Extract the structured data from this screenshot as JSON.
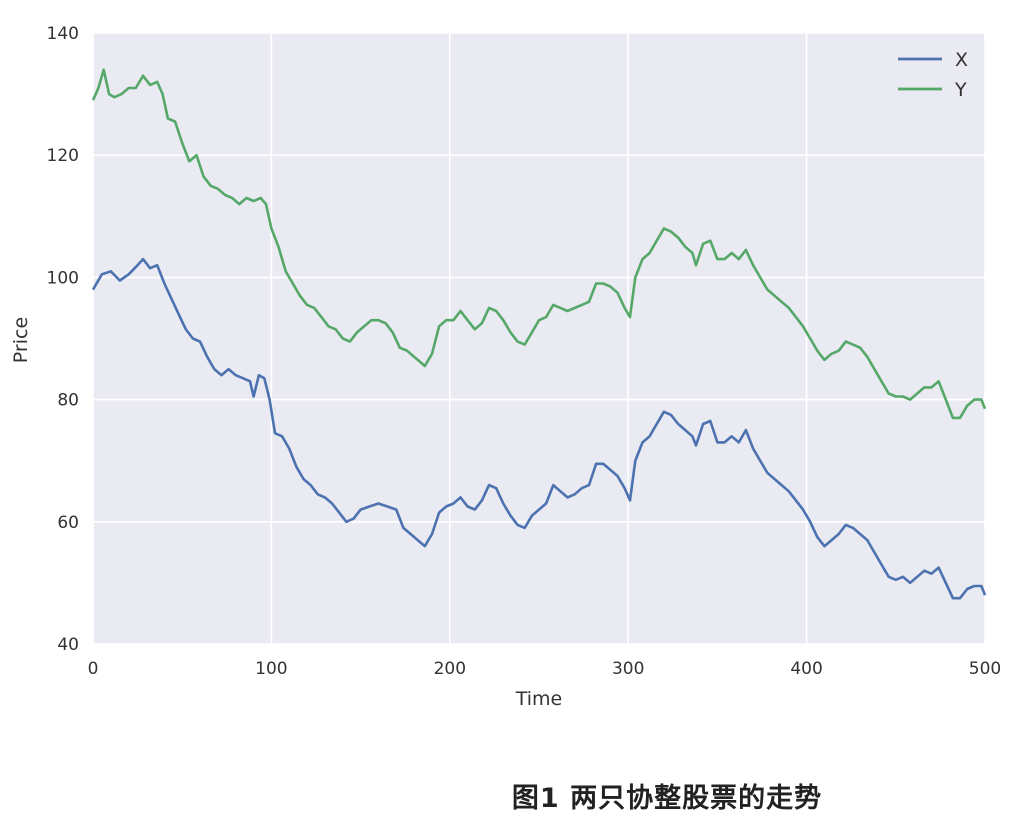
{
  "caption": "图1  两只协整股票的走势",
  "chart_data": {
    "type": "line",
    "title": "",
    "xlabel": "Time",
    "ylabel": "Price",
    "xlim": [
      0,
      500
    ],
    "ylim": [
      40,
      140
    ],
    "x_ticks": [
      "0",
      "100",
      "200",
      "300",
      "400",
      "500"
    ],
    "y_ticks": [
      "40",
      "60",
      "80",
      "100",
      "120",
      "140"
    ],
    "grid": true,
    "legend_position": "top-right",
    "series": [
      {
        "name": "X",
        "color": "#4c72b0",
        "points": [
          [
            0,
            98
          ],
          [
            5,
            100.5
          ],
          [
            10,
            101
          ],
          [
            15,
            99.5
          ],
          [
            20,
            100.5
          ],
          [
            25,
            102
          ],
          [
            28,
            103
          ],
          [
            32,
            101.5
          ],
          [
            36,
            102
          ],
          [
            40,
            99
          ],
          [
            44,
            96.5
          ],
          [
            48,
            94
          ],
          [
            52,
            91.5
          ],
          [
            56,
            90
          ],
          [
            60,
            89.5
          ],
          [
            64,
            87
          ],
          [
            68,
            85
          ],
          [
            72,
            84
          ],
          [
            76,
            85
          ],
          [
            80,
            84
          ],
          [
            84,
            83.5
          ],
          [
            88,
            83
          ],
          [
            90,
            80.5
          ],
          [
            93,
            84
          ],
          [
            96,
            83.5
          ],
          [
            99,
            80
          ],
          [
            102,
            74.5
          ],
          [
            106,
            74
          ],
          [
            110,
            72
          ],
          [
            114,
            69
          ],
          [
            118,
            67
          ],
          [
            122,
            66
          ],
          [
            126,
            64.5
          ],
          [
            130,
            64
          ],
          [
            134,
            63
          ],
          [
            138,
            61.5
          ],
          [
            142,
            60
          ],
          [
            146,
            60.5
          ],
          [
            150,
            62
          ],
          [
            155,
            62.5
          ],
          [
            160,
            63
          ],
          [
            165,
            62.5
          ],
          [
            170,
            62
          ],
          [
            174,
            59
          ],
          [
            178,
            58
          ],
          [
            182,
            57
          ],
          [
            186,
            56
          ],
          [
            190,
            58
          ],
          [
            194,
            61.5
          ],
          [
            198,
            62.5
          ],
          [
            202,
            63
          ],
          [
            206,
            64
          ],
          [
            210,
            62.5
          ],
          [
            214,
            62
          ],
          [
            218,
            63.5
          ],
          [
            222,
            66
          ],
          [
            226,
            65.5
          ],
          [
            230,
            63
          ],
          [
            234,
            61
          ],
          [
            238,
            59.5
          ],
          [
            242,
            59
          ],
          [
            246,
            61
          ],
          [
            250,
            62
          ],
          [
            254,
            63
          ],
          [
            258,
            66
          ],
          [
            262,
            65
          ],
          [
            266,
            64
          ],
          [
            270,
            64.5
          ],
          [
            274,
            65.5
          ],
          [
            278,
            66
          ],
          [
            282,
            69.5
          ],
          [
            286,
            69.5
          ],
          [
            290,
            68.5
          ],
          [
            294,
            67.5
          ],
          [
            298,
            65.5
          ],
          [
            301,
            63.5
          ],
          [
            304,
            70
          ],
          [
            308,
            73
          ],
          [
            312,
            74
          ],
          [
            316,
            76
          ],
          [
            320,
            78
          ],
          [
            324,
            77.5
          ],
          [
            328,
            76
          ],
          [
            332,
            75
          ],
          [
            336,
            74
          ],
          [
            338,
            72.5
          ],
          [
            342,
            76
          ],
          [
            346,
            76.5
          ],
          [
            350,
            73
          ],
          [
            354,
            73
          ],
          [
            358,
            74
          ],
          [
            362,
            73
          ],
          [
            366,
            75
          ],
          [
            370,
            72
          ],
          [
            374,
            70
          ],
          [
            378,
            68
          ],
          [
            382,
            67
          ],
          [
            386,
            66
          ],
          [
            390,
            65
          ],
          [
            394,
            63.5
          ],
          [
            398,
            62
          ],
          [
            402,
            60
          ],
          [
            406,
            57.5
          ],
          [
            410,
            56
          ],
          [
            414,
            57
          ],
          [
            418,
            58
          ],
          [
            422,
            59.5
          ],
          [
            426,
            59
          ],
          [
            430,
            58
          ],
          [
            434,
            57
          ],
          [
            438,
            55
          ],
          [
            442,
            53
          ],
          [
            446,
            51
          ],
          [
            450,
            50.5
          ],
          [
            454,
            51
          ],
          [
            458,
            50
          ],
          [
            462,
            51
          ],
          [
            466,
            52
          ],
          [
            470,
            51.5
          ],
          [
            474,
            52.5
          ],
          [
            478,
            50
          ],
          [
            482,
            47.5
          ],
          [
            486,
            47.5
          ],
          [
            490,
            49
          ],
          [
            494,
            49.5
          ],
          [
            498,
            49.5
          ],
          [
            500,
            48
          ]
        ]
      },
      {
        "name": "Y",
        "color": "#55a868",
        "points": [
          [
            0,
            129
          ],
          [
            3,
            131
          ],
          [
            6,
            134
          ],
          [
            9,
            130
          ],
          [
            12,
            129.5
          ],
          [
            16,
            130
          ],
          [
            20,
            131
          ],
          [
            24,
            131
          ],
          [
            28,
            133
          ],
          [
            32,
            131.5
          ],
          [
            36,
            132
          ],
          [
            39,
            130
          ],
          [
            42,
            126
          ],
          [
            46,
            125.5
          ],
          [
            50,
            122
          ],
          [
            54,
            119
          ],
          [
            58,
            120
          ],
          [
            62,
            116.5
          ],
          [
            66,
            115
          ],
          [
            70,
            114.5
          ],
          [
            74,
            113.5
          ],
          [
            78,
            113
          ],
          [
            82,
            112
          ],
          [
            86,
            113
          ],
          [
            90,
            112.5
          ],
          [
            94,
            113
          ],
          [
            97,
            112
          ],
          [
            100,
            108
          ],
          [
            104,
            105
          ],
          [
            108,
            101
          ],
          [
            112,
            99
          ],
          [
            116,
            97
          ],
          [
            120,
            95.5
          ],
          [
            124,
            95
          ],
          [
            128,
            93.5
          ],
          [
            132,
            92
          ],
          [
            136,
            91.5
          ],
          [
            140,
            90
          ],
          [
            144,
            89.5
          ],
          [
            148,
            91
          ],
          [
            152,
            92
          ],
          [
            156,
            93
          ],
          [
            160,
            93
          ],
          [
            164,
            92.5
          ],
          [
            168,
            91
          ],
          [
            172,
            88.5
          ],
          [
            176,
            88
          ],
          [
            180,
            87
          ],
          [
            184,
            86
          ],
          [
            186,
            85.5
          ],
          [
            190,
            87.5
          ],
          [
            194,
            92
          ],
          [
            198,
            93
          ],
          [
            202,
            93
          ],
          [
            206,
            94.5
          ],
          [
            210,
            93
          ],
          [
            214,
            91.5
          ],
          [
            218,
            92.5
          ],
          [
            222,
            95
          ],
          [
            226,
            94.5
          ],
          [
            230,
            93
          ],
          [
            234,
            91
          ],
          [
            238,
            89.5
          ],
          [
            242,
            89
          ],
          [
            246,
            91
          ],
          [
            250,
            93
          ],
          [
            254,
            93.5
          ],
          [
            258,
            95.5
          ],
          [
            262,
            95
          ],
          [
            266,
            94.5
          ],
          [
            270,
            95
          ],
          [
            274,
            95.5
          ],
          [
            278,
            96
          ],
          [
            282,
            99
          ],
          [
            286,
            99
          ],
          [
            290,
            98.5
          ],
          [
            294,
            97.5
          ],
          [
            298,
            95
          ],
          [
            301,
            93.5
          ],
          [
            304,
            100
          ],
          [
            308,
            103
          ],
          [
            312,
            104
          ],
          [
            316,
            106
          ],
          [
            320,
            108
          ],
          [
            324,
            107.5
          ],
          [
            328,
            106.5
          ],
          [
            332,
            105
          ],
          [
            336,
            104
          ],
          [
            338,
            102
          ],
          [
            342,
            105.5
          ],
          [
            346,
            106
          ],
          [
            350,
            103
          ],
          [
            354,
            103
          ],
          [
            358,
            104
          ],
          [
            362,
            103
          ],
          [
            366,
            104.5
          ],
          [
            370,
            102
          ],
          [
            374,
            100
          ],
          [
            378,
            98
          ],
          [
            382,
            97
          ],
          [
            386,
            96
          ],
          [
            390,
            95
          ],
          [
            394,
            93.5
          ],
          [
            398,
            92
          ],
          [
            402,
            90
          ],
          [
            406,
            88
          ],
          [
            410,
            86.5
          ],
          [
            414,
            87.5
          ],
          [
            418,
            88
          ],
          [
            422,
            89.5
          ],
          [
            426,
            89
          ],
          [
            430,
            88.5
          ],
          [
            434,
            87
          ],
          [
            438,
            85
          ],
          [
            442,
            83
          ],
          [
            446,
            81
          ],
          [
            450,
            80.5
          ],
          [
            454,
            80.5
          ],
          [
            458,
            80
          ],
          [
            462,
            81
          ],
          [
            466,
            82
          ],
          [
            470,
            82
          ],
          [
            474,
            83
          ],
          [
            478,
            80
          ],
          [
            482,
            77
          ],
          [
            486,
            77
          ],
          [
            490,
            79
          ],
          [
            494,
            80
          ],
          [
            498,
            80
          ],
          [
            500,
            78.5
          ]
        ]
      }
    ]
  }
}
